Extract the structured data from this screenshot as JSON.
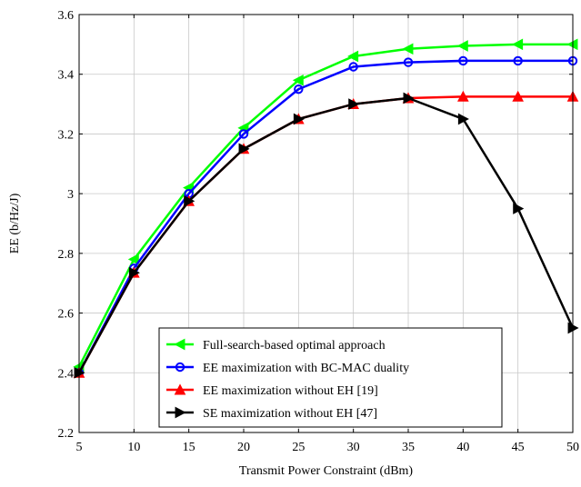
{
  "chart_data": {
    "type": "line",
    "title": "",
    "xlabel": "Transmit Power Constraint (dBm)",
    "ylabel": "EE (b/Hz/J)",
    "xlim": [
      5,
      50
    ],
    "ylim": [
      2.2,
      3.6
    ],
    "xticks": [
      5,
      10,
      15,
      20,
      25,
      30,
      35,
      40,
      45,
      50
    ],
    "yticks": [
      2.2,
      2.4,
      2.6,
      2.8,
      3,
      3.2,
      3.4,
      3.6
    ],
    "xtick_labels": [
      "5",
      "10",
      "15",
      "20",
      "25",
      "30",
      "35",
      "40",
      "45",
      "50"
    ],
    "ytick_labels": [
      "2.2",
      "2.4",
      "2.6",
      "2.8",
      "3",
      "3.2",
      "3.4",
      "3.6"
    ],
    "grid": true,
    "legend_position": "bottom-center",
    "x": [
      5,
      10,
      15,
      20,
      25,
      30,
      35,
      40,
      45,
      50
    ],
    "series": [
      {
        "name": "Full-search-based optimal approach",
        "color": "#00ff00",
        "marker": "triangle-left",
        "values": [
          2.42,
          2.78,
          3.02,
          3.22,
          3.38,
          3.46,
          3.485,
          3.495,
          3.5,
          3.5
        ]
      },
      {
        "name": "EE maximization with BC-MAC duality",
        "color": "#0000ff",
        "marker": "circle",
        "values": [
          2.4,
          2.75,
          3.0,
          3.2,
          3.35,
          3.425,
          3.44,
          3.445,
          3.445,
          3.445
        ]
      },
      {
        "name": "EE maximization without EH [19]",
        "color": "#ff0000",
        "marker": "triangle-up",
        "values": [
          2.4,
          2.735,
          2.975,
          3.15,
          3.25,
          3.3,
          3.32,
          3.325,
          3.325,
          3.325
        ]
      },
      {
        "name": "SE maximization without EH [47]",
        "color": "#000000",
        "marker": "triangle-right",
        "values": [
          2.4,
          2.735,
          2.975,
          3.15,
          3.25,
          3.3,
          3.32,
          3.25,
          2.95,
          2.55
        ]
      }
    ]
  }
}
